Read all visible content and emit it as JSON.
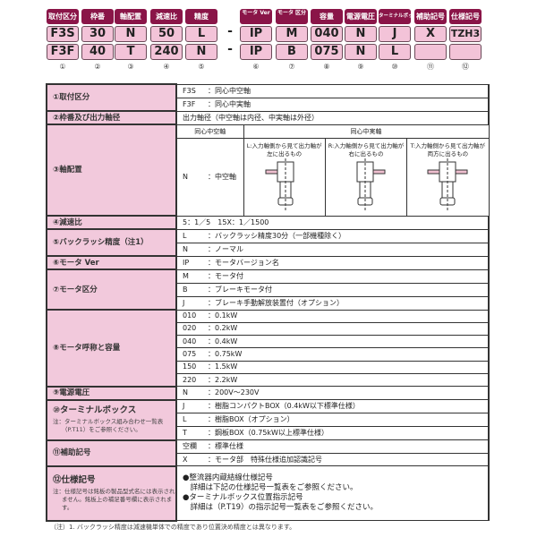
{
  "header": {
    "labels": [
      "取付区分",
      "枠番",
      "軸配置",
      "減速比",
      "精度",
      "モータ Ver",
      "モータ 区分",
      "容量",
      "電源電圧",
      "ターミナルボックス",
      "補助記号",
      "仕様記号"
    ],
    "row1": [
      "F3S",
      "30",
      "N",
      "50",
      "L",
      "IP",
      "M",
      "040",
      "N",
      "J",
      "X",
      "TZH3"
    ],
    "row2": [
      "F3F",
      "40",
      "T",
      "240",
      "N",
      "IP",
      "B",
      "075",
      "N",
      "L",
      "",
      ""
    ],
    "numbers": [
      "①",
      "②",
      "③",
      "④",
      "⑤",
      "⑥",
      "⑦",
      "⑧",
      "⑨",
      "⑩",
      "⑪",
      "⑫"
    ],
    "dash": "-"
  },
  "table": {
    "s1": {
      "label": "①取付区分",
      "rows": [
        [
          "F3S",
          "：同心中空軸"
        ],
        [
          "F3F",
          "：同心中実軸"
        ]
      ]
    },
    "s2": {
      "label": "②枠番及び出力軸径",
      "text": "出力軸径（中空軸は内径、中実軸は外径）"
    },
    "s3": {
      "label": "③軸配置",
      "hollow": "同心中空軸",
      "solid": "同心中実軸",
      "n_key": "N",
      "n_val": "：中空軸",
      "l": "L:入力軸側から見て出力軸が左に出るもの",
      "r": "R:入力軸側から見て出力軸が右に出るもの",
      "t": "T:入力軸側から見て出力軸が両方に出るもの"
    },
    "s4": {
      "label": "④減速比",
      "text": "5：1／5　15X：1／1500"
    },
    "s5": {
      "label": "⑤バックラッシ精度（注1）",
      "rows": [
        [
          "L",
          "：バックラッシ精度30分（一部機種除く）"
        ],
        [
          "N",
          "：ノーマル"
        ]
      ]
    },
    "s6": {
      "label": "⑥モータ Ver",
      "rows": [
        [
          "IP",
          "：モータバージョン名"
        ]
      ]
    },
    "s7": {
      "label": "⑦モータ区分",
      "rows": [
        [
          "M",
          "：モータ付"
        ],
        [
          "B",
          "：ブレーキモータ付"
        ],
        [
          "J",
          "：ブレーキ手動解放装置付（オプション）"
        ]
      ]
    },
    "s8": {
      "label": "⑧モータ呼称と容量",
      "rows": [
        [
          "010",
          "：0.1kW"
        ],
        [
          "020",
          "：0.2kW"
        ],
        [
          "040",
          "：0.4kW"
        ],
        [
          "075",
          "：0.75kW"
        ],
        [
          "150",
          "：1.5kW"
        ],
        [
          "220",
          "：2.2kW"
        ]
      ]
    },
    "s9": {
      "label": "⑨電源電圧",
      "rows": [
        [
          "N",
          "：200V～230V"
        ]
      ]
    },
    "s10": {
      "label": "⑩ターミナルボックス",
      "note": "注：ターミナルボックス組み合わせ一覧表（P.T11）をご参照ください。",
      "rows": [
        [
          "J",
          "：樹脂コンパクトBOX（0.4kW以下標準仕様）"
        ],
        [
          "L",
          "：樹脂BOX（オプション）"
        ],
        [
          "T",
          "：鋼板BOX（0.75kW以上標準仕様）"
        ]
      ]
    },
    "s11": {
      "label": "⑪補助記号",
      "rows": [
        [
          "空欄",
          "：標準仕様"
        ],
        [
          "X",
          "：モータ部　特殊仕様追加認識記号"
        ]
      ]
    },
    "s12": {
      "label": "⑫仕様記号",
      "note": "注：仕様記号は銘板の製品型式名には表示されません。銘板上の補足番号欄に表示されます。",
      "lines": [
        "●整流器内蔵結線仕様記号",
        "　詳細は下記の仕様記号一覧表をご参照ください。",
        "●ターミナルボックス位置指示記号",
        "　詳細は（P.T19）の指示記号一覧表をご参照ください。"
      ]
    }
  },
  "footnote": "（注）1. バックラッシ精度は減速機単体での精度であり位置決め精度とは異なります。",
  "colors": {
    "badge": "#8a1548",
    "value_box": "#f3c3d8",
    "label_cell": "#f2c9dc"
  }
}
